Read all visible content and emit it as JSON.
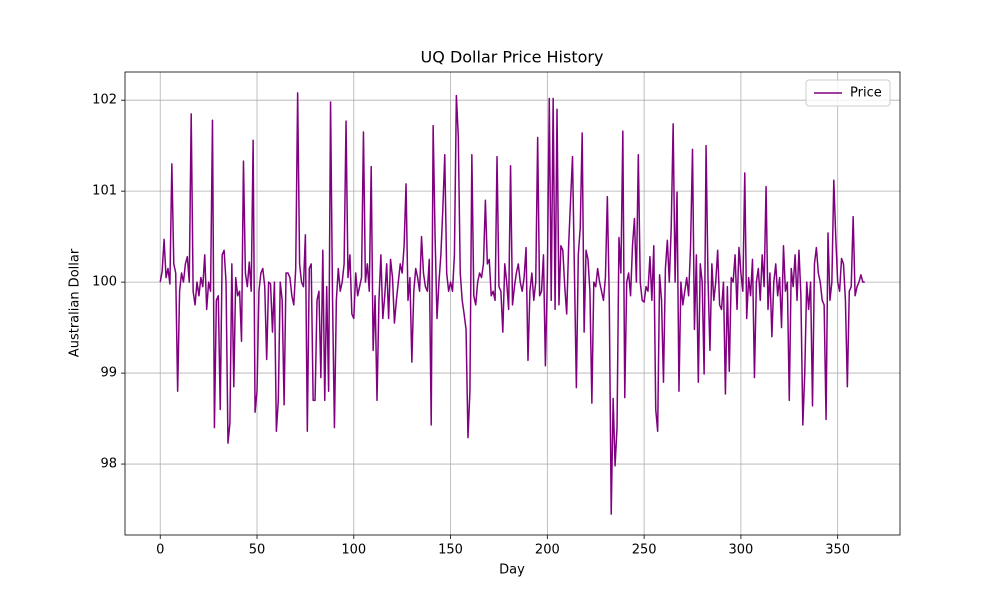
{
  "chart_data": {
    "type": "line",
    "title": "UQ Dollar Price History",
    "x_label": "Day",
    "y_label": "Australian Dollar",
    "xlim": [
      -18.2,
      382.2
    ],
    "ylim": [
      97.22,
      102.31
    ],
    "xticks": [
      0,
      50,
      100,
      150,
      200,
      250,
      300,
      350
    ],
    "yticks": [
      98,
      99,
      100,
      101,
      102
    ],
    "grid": true,
    "legend": "upper right",
    "x": [
      0,
      1,
      2,
      3,
      4,
      5,
      6,
      7,
      8,
      9,
      10,
      11,
      12,
      13,
      14,
      15,
      16,
      17,
      18,
      19,
      20,
      21,
      22,
      23,
      24,
      25,
      26,
      27,
      28,
      29,
      30,
      31,
      32,
      33,
      34,
      35,
      36,
      37,
      38,
      39,
      40,
      41,
      42,
      43,
      44,
      45,
      46,
      47,
      48,
      49,
      50,
      51,
      52,
      53,
      54,
      55,
      56,
      57,
      58,
      59,
      60,
      61,
      62,
      63,
      64,
      65,
      66,
      67,
      68,
      69,
      70,
      71,
      72,
      73,
      74,
      75,
      76,
      77,
      78,
      79,
      80,
      81,
      82,
      83,
      84,
      85,
      86,
      87,
      88,
      89,
      90,
      91,
      92,
      93,
      94,
      95,
      96,
      97,
      98,
      99,
      100,
      101,
      102,
      103,
      104,
      105,
      106,
      107,
      108,
      109,
      110,
      111,
      112,
      113,
      114,
      115,
      116,
      117,
      118,
      119,
      120,
      121,
      122,
      123,
      124,
      125,
      126,
      127,
      128,
      129,
      130,
      131,
      132,
      133,
      134,
      135,
      136,
      137,
      138,
      139,
      140,
      141,
      142,
      143,
      144,
      145,
      146,
      147,
      148,
      149,
      150,
      151,
      152,
      153,
      154,
      155,
      156,
      157,
      158,
      159,
      160,
      161,
      162,
      163,
      164,
      165,
      166,
      167,
      168,
      169,
      170,
      171,
      172,
      173,
      174,
      175,
      176,
      177,
      178,
      179,
      180,
      181,
      182,
      183,
      184,
      185,
      186,
      187,
      188,
      189,
      190,
      191,
      192,
      193,
      194,
      195,
      196,
      197,
      198,
      199,
      200,
      201,
      202,
      203,
      204,
      205,
      206,
      207,
      208,
      209,
      210,
      211,
      212,
      213,
      214,
      215,
      216,
      217,
      218,
      219,
      220,
      221,
      222,
      223,
      224,
      225,
      226,
      227,
      228,
      229,
      230,
      231,
      232,
      233,
      234,
      235,
      236,
      237,
      238,
      239,
      240,
      241,
      242,
      243,
      244,
      245,
      246,
      247,
      248,
      249,
      250,
      251,
      252,
      253,
      254,
      255,
      256,
      257,
      258,
      259,
      260,
      261,
      262,
      263,
      264,
      265,
      266,
      267,
      268,
      269,
      270,
      271,
      272,
      273,
      274,
      275,
      276,
      277,
      278,
      279,
      280,
      281,
      282,
      283,
      284,
      285,
      286,
      287,
      288,
      289,
      290,
      291,
      292,
      293,
      294,
      295,
      296,
      297,
      298,
      299,
      300,
      301,
      302,
      303,
      304,
      305,
      306,
      307,
      308,
      309,
      310,
      311,
      312,
      313,
      314,
      315,
      316,
      317,
      318,
      319,
      320,
      321,
      322,
      323,
      324,
      325,
      326,
      327,
      328,
      329,
      330,
      331,
      332,
      333,
      334,
      335,
      336,
      337,
      338,
      339,
      340,
      341,
      342,
      343,
      344,
      345,
      346,
      347,
      348,
      349,
      350,
      351,
      352,
      353,
      354,
      355,
      356,
      357,
      358,
      359,
      360,
      361,
      362,
      363,
      364
    ],
    "series": [
      {
        "name": "Price",
        "color": "purple",
        "values": [
          100.0,
          100.12,
          100.47,
          100.05,
          100.15,
          99.98,
          101.3,
          100.2,
          100.1,
          98.8,
          99.9,
          100.1,
          100.0,
          100.2,
          100.28,
          100.0,
          101.85,
          99.9,
          99.75,
          100.0,
          99.85,
          100.05,
          99.95,
          100.3,
          99.7,
          100.0,
          99.9,
          101.78,
          98.4,
          99.8,
          99.85,
          98.6,
          100.3,
          100.35,
          100.0,
          98.23,
          98.45,
          100.2,
          98.85,
          100.05,
          99.85,
          99.9,
          99.35,
          101.33,
          100.1,
          99.95,
          100.22,
          99.9,
          101.56,
          98.57,
          98.8,
          99.9,
          100.1,
          100.15,
          99.95,
          99.15,
          100.0,
          99.98,
          99.45,
          100.0,
          98.36,
          98.7,
          100.0,
          99.8,
          98.65,
          100.1,
          100.1,
          100.05,
          99.85,
          99.75,
          100.15,
          102.08,
          100.2,
          100.0,
          99.95,
          100.52,
          98.36,
          100.15,
          100.2,
          98.7,
          98.7,
          99.8,
          99.9,
          98.95,
          100.35,
          98.7,
          99.95,
          98.8,
          101.98,
          99.85,
          98.4,
          99.8,
          100.15,
          99.9,
          100.0,
          100.2,
          101.77,
          100.05,
          100.3,
          99.65,
          99.6,
          100.1,
          99.85,
          99.95,
          100.05,
          101.65,
          100.0,
          100.2,
          99.9,
          101.27,
          99.25,
          99.85,
          98.7,
          99.8,
          100.3,
          99.6,
          99.85,
          100.2,
          99.6,
          100.25,
          100.05,
          99.55,
          99.8,
          100.0,
          100.2,
          100.1,
          100.4,
          101.08,
          99.8,
          100.05,
          99.12,
          99.9,
          100.15,
          100.05,
          99.9,
          100.5,
          100.1,
          99.95,
          99.9,
          100.25,
          98.43,
          101.72,
          100.5,
          99.6,
          100.0,
          100.3,
          100.8,
          101.4,
          100.1,
          99.9,
          100.0,
          99.9,
          100.3,
          102.05,
          101.6,
          100.1,
          99.8,
          99.65,
          99.48,
          98.29,
          98.8,
          101.4,
          99.85,
          99.75,
          100.0,
          100.1,
          100.05,
          100.2,
          100.9,
          100.2,
          100.25,
          99.85,
          99.9,
          99.8,
          101.38,
          99.95,
          99.9,
          99.45,
          100.2,
          100.0,
          99.7,
          101.28,
          99.75,
          99.95,
          100.1,
          100.2,
          100.0,
          99.9,
          100.05,
          100.38,
          99.14,
          99.9,
          100.1,
          99.8,
          100.0,
          101.59,
          99.85,
          99.9,
          100.3,
          99.08,
          100.05,
          102.02,
          99.8,
          102.02,
          99.7,
          101.9,
          99.75,
          100.4,
          100.35,
          99.95,
          99.65,
          100.4,
          100.9,
          101.38,
          100.1,
          98.84,
          100.3,
          100.6,
          101.64,
          99.45,
          100.35,
          100.25,
          99.9,
          98.67,
          100.0,
          99.95,
          100.15,
          100.0,
          99.9,
          99.8,
          100.05,
          100.94,
          99.8,
          97.45,
          98.72,
          97.98,
          98.4,
          100.49,
          100.1,
          101.66,
          98.73,
          100.0,
          100.1,
          99.85,
          100.4,
          100.7,
          100.0,
          101.4,
          100.0,
          99.8,
          99.78,
          99.95,
          99.9,
          100.28,
          99.8,
          100.4,
          98.6,
          98.36,
          100.08,
          99.8,
          98.9,
          100.15,
          100.46,
          100.0,
          100.6,
          101.74,
          100.0,
          100.99,
          98.8,
          100.0,
          99.75,
          99.9,
          100.05,
          99.85,
          100.4,
          101.46,
          99.48,
          100.3,
          98.9,
          100.2,
          100.0,
          98.99,
          101.5,
          100.05,
          99.25,
          100.2,
          99.8,
          100.0,
          100.35,
          99.75,
          99.7,
          100.0,
          98.77,
          99.95,
          99.02,
          100.05,
          100.0,
          100.3,
          99.7,
          100.38,
          100.1,
          99.9,
          101.2,
          99.6,
          100.05,
          99.85,
          100.25,
          98.95,
          100.0,
          100.15,
          99.8,
          100.3,
          99.95,
          101.05,
          99.7,
          100.1,
          99.4,
          100.0,
          100.2,
          99.85,
          100.05,
          99.5,
          100.4,
          99.9,
          100.0,
          98.7,
          100.15,
          99.95,
          100.3,
          99.8,
          100.35,
          99.85,
          98.43,
          99.0,
          100.0,
          99.7,
          100.0,
          98.64,
          100.2,
          100.38,
          100.1,
          100.0,
          99.8,
          99.75,
          98.49,
          100.54,
          99.8,
          100.0,
          101.12,
          100.5,
          100.0,
          99.9,
          100.26,
          100.2,
          99.8,
          98.85,
          99.9,
          99.95,
          100.72,
          99.85,
          99.95,
          100.0,
          100.08,
          100.0,
          100.0
        ]
      }
    ]
  }
}
